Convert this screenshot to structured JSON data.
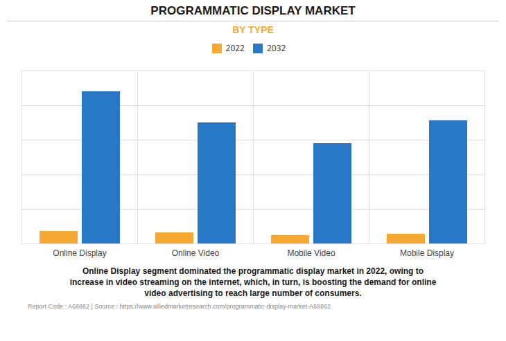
{
  "chart_data": {
    "type": "bar",
    "title": "PROGRAMMATIC DISPLAY MARKET",
    "subtitle": "BY TYPE",
    "categories": [
      "Online Display",
      "Online Video",
      "Mobile Video",
      "Mobile Display"
    ],
    "series": [
      {
        "name": "2022",
        "color": "#F5A832",
        "values": [
          1.8,
          1.6,
          1.2,
          1.4
        ]
      },
      {
        "name": "2032",
        "color": "#2878C8",
        "values": [
          22.0,
          17.5,
          14.5,
          17.8
        ]
      }
    ],
    "ylim": [
      0,
      25
    ],
    "yticks": [
      0,
      5,
      10,
      15,
      20,
      25
    ],
    "grid": true,
    "legend": "top",
    "tick_labels": "x",
    "annotations": [
      "Online Display segment dominated the programmatic display market in 2022, owing to",
      "increase in video streaming on the internet, which, in turn, is boosting the demand for online",
      "video advertising to reach large number of consumers."
    ],
    "footer": "Report Code : A68862  |  Source : https://www.alliedmarketresearch.com/programmatic-display-market-A68862"
  }
}
